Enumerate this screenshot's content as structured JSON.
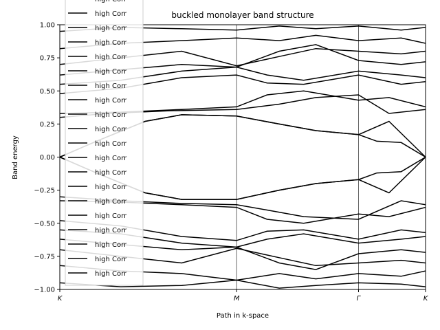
{
  "chart_data": {
    "type": "line",
    "title": "buckled monolayer band structure",
    "xlabel": "Path in k-space",
    "ylabel": "Band energy",
    "xlim": [
      0,
      3
    ],
    "ylim": [
      -1.0,
      1.0
    ],
    "x_ticks": [
      {
        "value": 0,
        "label": "K"
      },
      {
        "value": 1.45,
        "label": "M"
      },
      {
        "value": 2.45,
        "label": "Γ"
      },
      {
        "value": 3,
        "label": "K"
      }
    ],
    "y_ticks": [
      -1.0,
      -0.75,
      -0.5,
      -0.25,
      0.0,
      0.25,
      0.5,
      0.75,
      1.0
    ],
    "y_tick_labels": [
      "−1.00",
      "−0.75",
      "−0.50",
      "−0.25",
      "0.00",
      "0.25",
      "0.50",
      "0.75",
      "1.00"
    ],
    "vertical_lines_at": [
      1.45,
      2.45
    ],
    "legend": {
      "placement": "top-left",
      "entries": [
        "high Corr",
        "high Corr",
        "high Corr",
        "high Corr",
        "high Corr",
        "high Corr",
        "high Corr",
        "high Corr",
        "high Corr",
        "high Corr",
        "high Corr",
        "high Corr",
        "high Corr",
        "high Corr",
        "high Corr",
        "high Corr",
        "high Corr",
        "high Corr",
        "high Corr",
        "high Corr"
      ]
    },
    "line_color": "#000000",
    "series": [
      {
        "x": [
          0,
          0.3,
          0.7,
          1.0,
          1.45,
          1.8,
          2.1,
          2.45,
          2.7,
          3.0
        ],
        "y": [
          0.0,
          0.12,
          0.27,
          0.32,
          0.31,
          0.25,
          0.2,
          0.17,
          0.27,
          0.0
        ]
      },
      {
        "x": [
          0,
          0.3,
          0.7,
          1.0,
          1.45,
          1.8,
          2.1,
          2.45,
          2.6,
          2.8,
          3.0
        ],
        "y": [
          0.0,
          0.12,
          0.27,
          0.32,
          0.31,
          0.25,
          0.2,
          0.17,
          0.12,
          0.11,
          0.0
        ]
      },
      {
        "x": [
          0,
          0.3,
          0.7,
          1.0,
          1.45,
          1.8,
          2.1,
          2.45,
          2.7,
          3.0
        ],
        "y": [
          0.0,
          -0.12,
          -0.27,
          -0.32,
          -0.32,
          -0.25,
          -0.2,
          -0.17,
          -0.27,
          0.0
        ]
      },
      {
        "x": [
          0,
          0.3,
          0.7,
          1.0,
          1.45,
          1.8,
          2.1,
          2.45,
          2.6,
          2.8,
          3.0
        ],
        "y": [
          0.0,
          -0.12,
          -0.27,
          -0.32,
          -0.32,
          -0.25,
          -0.2,
          -0.17,
          -0.12,
          -0.11,
          0.0
        ]
      },
      {
        "x": [
          0,
          0.4,
          0.9,
          1.45,
          1.8,
          2.1,
          2.45,
          2.7,
          3.0
        ],
        "y": [
          0.3,
          0.33,
          0.35,
          0.36,
          0.4,
          0.45,
          0.47,
          0.33,
          0.36
        ]
      },
      {
        "x": [
          0,
          0.5,
          1.0,
          1.45,
          1.7,
          2.0,
          2.45,
          2.7,
          3.0
        ],
        "y": [
          0.33,
          0.34,
          0.36,
          0.38,
          0.47,
          0.5,
          0.43,
          0.45,
          0.38
        ]
      },
      {
        "x": [
          0,
          0.5,
          1.0,
          1.45,
          1.7,
          2.0,
          2.45,
          2.8,
          3.0
        ],
        "y": [
          -0.3,
          -0.33,
          -0.35,
          -0.36,
          -0.4,
          -0.45,
          -0.47,
          -0.33,
          -0.36
        ]
      },
      {
        "x": [
          0,
          0.5,
          1.0,
          1.45,
          1.7,
          2.0,
          2.45,
          2.7,
          3.0
        ],
        "y": [
          -0.33,
          -0.34,
          -0.36,
          -0.38,
          -0.47,
          -0.5,
          -0.43,
          -0.45,
          -0.38
        ]
      },
      {
        "x": [
          0,
          0.5,
          1.0,
          1.45,
          1.7,
          2.0,
          2.45,
          2.8,
          3.0
        ],
        "y": [
          0.48,
          0.52,
          0.6,
          0.62,
          0.56,
          0.55,
          0.62,
          0.55,
          0.57
        ]
      },
      {
        "x": [
          0,
          0.5,
          1.0,
          1.45,
          1.7,
          2.0,
          2.45,
          2.8,
          3.0
        ],
        "y": [
          0.55,
          0.58,
          0.65,
          0.68,
          0.62,
          0.58,
          0.65,
          0.62,
          0.6
        ]
      },
      {
        "x": [
          0,
          0.5,
          1.0,
          1.45,
          1.7,
          2.0,
          2.45,
          2.8,
          3.0
        ],
        "y": [
          -0.48,
          -0.52,
          -0.6,
          -0.63,
          -0.56,
          -0.55,
          -0.62,
          -0.55,
          -0.57
        ]
      },
      {
        "x": [
          0,
          0.5,
          1.0,
          1.45,
          1.7,
          2.0,
          2.45,
          2.8,
          3.0
        ],
        "y": [
          -0.55,
          -0.58,
          -0.65,
          -0.68,
          -0.62,
          -0.58,
          -0.65,
          -0.62,
          -0.6
        ]
      },
      {
        "x": [
          0,
          0.5,
          1.0,
          1.45,
          1.8,
          2.1,
          2.45,
          2.8,
          3.0
        ],
        "y": [
          0.62,
          0.66,
          0.7,
          0.68,
          0.8,
          0.85,
          0.73,
          0.7,
          0.72
        ]
      },
      {
        "x": [
          0,
          0.5,
          1.0,
          1.45,
          1.8,
          2.1,
          2.45,
          2.8,
          3.0
        ],
        "y": [
          0.7,
          0.75,
          0.8,
          0.69,
          0.76,
          0.82,
          0.8,
          0.78,
          0.8
        ]
      },
      {
        "x": [
          0,
          0.5,
          1.0,
          1.45,
          1.8,
          2.1,
          2.45,
          2.8,
          3.0
        ],
        "y": [
          -0.62,
          -0.66,
          -0.7,
          -0.68,
          -0.8,
          -0.85,
          -0.73,
          -0.7,
          -0.72
        ]
      },
      {
        "x": [
          0,
          0.5,
          1.0,
          1.45,
          1.8,
          2.1,
          2.45,
          2.8,
          3.0
        ],
        "y": [
          -0.7,
          -0.75,
          -0.8,
          -0.69,
          -0.76,
          -0.82,
          -0.8,
          -0.78,
          -0.8
        ]
      },
      {
        "x": [
          0,
          0.5,
          1.0,
          1.45,
          1.8,
          2.1,
          2.45,
          2.8,
          3.0
        ],
        "y": [
          0.82,
          0.86,
          0.88,
          0.9,
          0.88,
          0.92,
          0.88,
          0.9,
          0.86
        ]
      },
      {
        "x": [
          0,
          0.5,
          1.0,
          1.45,
          1.8,
          2.1,
          2.45,
          2.8,
          3.0
        ],
        "y": [
          -0.82,
          -0.86,
          -0.88,
          -0.93,
          -0.88,
          -0.92,
          -0.88,
          -0.9,
          -0.86
        ]
      },
      {
        "x": [
          0,
          0.5,
          1.0,
          1.45,
          1.8,
          2.1,
          2.45,
          2.8,
          3.0
        ],
        "y": [
          0.95,
          0.98,
          0.97,
          0.96,
          0.99,
          0.97,
          0.99,
          0.96,
          0.98
        ]
      },
      {
        "x": [
          0,
          0.5,
          1.0,
          1.45,
          1.8,
          2.1,
          2.45,
          2.8,
          3.0
        ],
        "y": [
          -0.95,
          -0.98,
          -0.97,
          -0.93,
          -0.99,
          -0.97,
          -0.95,
          -0.96,
          -0.98
        ]
      }
    ]
  }
}
